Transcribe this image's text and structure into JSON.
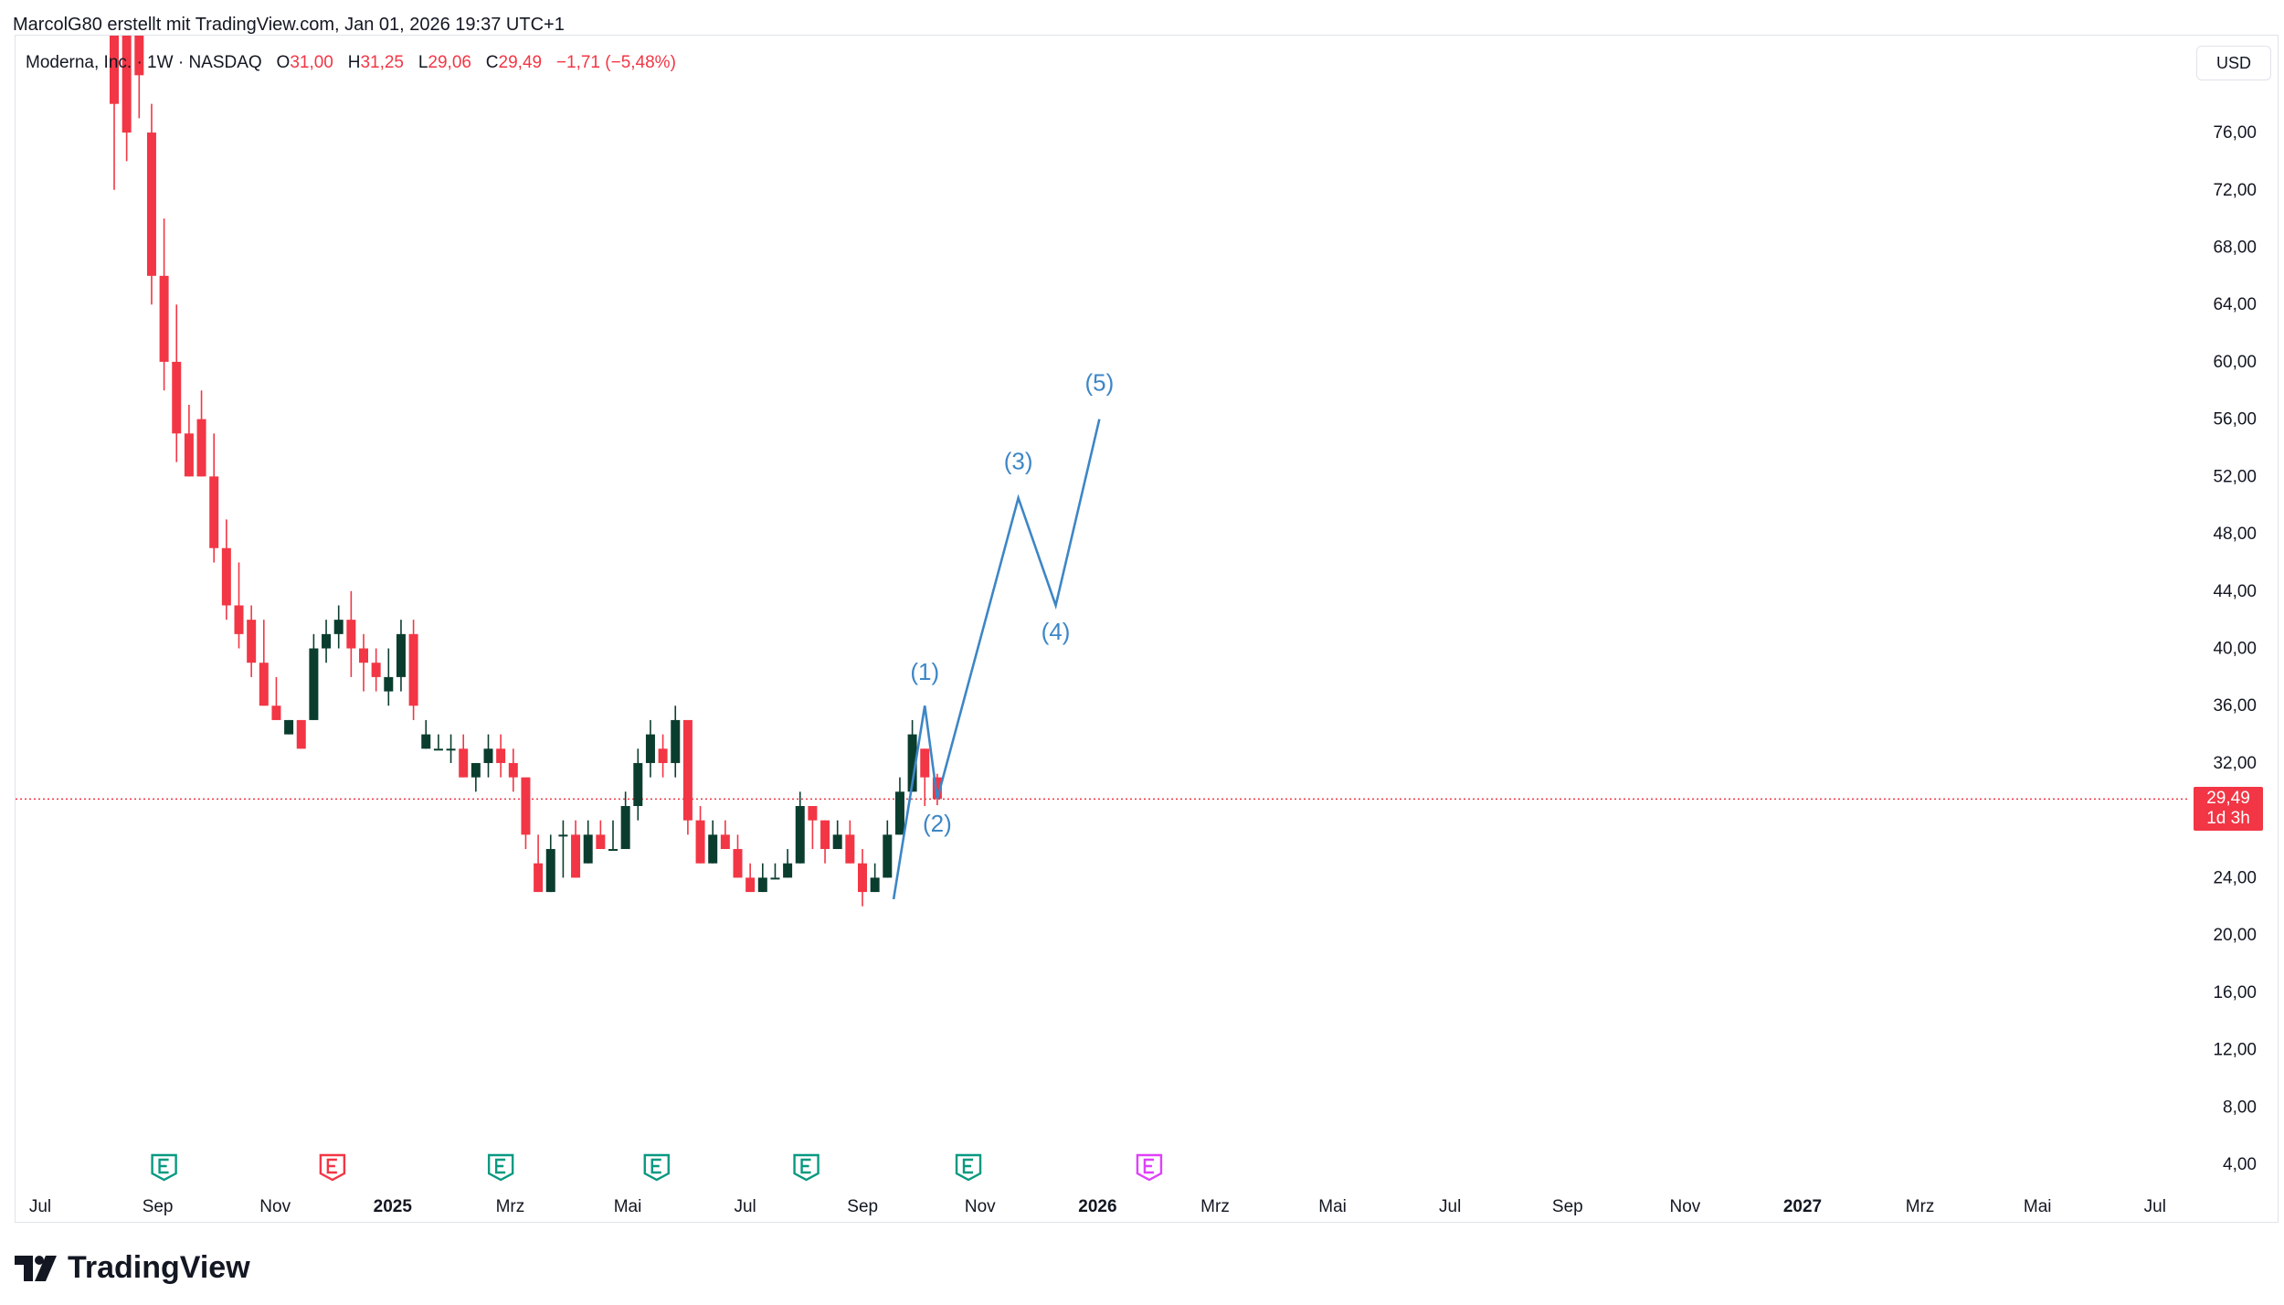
{
  "header": {
    "credit": "MarcolG80 erstellt mit TradingView.com, Jan 01, 2026 19:37 UTC+1"
  },
  "legend": {
    "symbol": "Moderna, Inc. · 1W · NASDAQ",
    "o_label": "O",
    "o_value": "31,00",
    "h_label": "H",
    "h_value": "31,25",
    "l_label": "L",
    "l_value": "29,06",
    "c_label": "C",
    "c_value": "29,49",
    "change": "−1,71 (−5,48%)"
  },
  "currency_button": "USD",
  "last_price": {
    "value": "29,49",
    "countdown": "1d 3h"
  },
  "colors": {
    "up": "#0b3d2e",
    "down": "#f23645",
    "wave": "#3d86c6",
    "earnings": "#089981",
    "earnings_future": "#e040fb"
  },
  "brand": "TradingView",
  "chart_data": {
    "type": "candlestick",
    "timeframe": "1W",
    "ylim": [
      4,
      80
    ],
    "y_ticks": [
      "76,00",
      "72,00",
      "68,00",
      "64,00",
      "60,00",
      "56,00",
      "52,00",
      "48,00",
      "44,00",
      "40,00",
      "36,00",
      "32,00",
      "28,00",
      "24,00",
      "20,00",
      "16,00",
      "12,00",
      "8,00",
      "4,00"
    ],
    "x_ticks": [
      {
        "label": "Jul",
        "bold": false
      },
      {
        "label": "Sep",
        "bold": false
      },
      {
        "label": "Nov",
        "bold": false
      },
      {
        "label": "2025",
        "bold": true
      },
      {
        "label": "Mrz",
        "bold": false
      },
      {
        "label": "Mai",
        "bold": false
      },
      {
        "label": "Jul",
        "bold": false
      },
      {
        "label": "Sep",
        "bold": false
      },
      {
        "label": "Nov",
        "bold": false
      },
      {
        "label": "2026",
        "bold": true
      },
      {
        "label": "Mrz",
        "bold": false
      },
      {
        "label": "Mai",
        "bold": false
      },
      {
        "label": "Jul",
        "bold": false
      },
      {
        "label": "Sep",
        "bold": false
      },
      {
        "label": "Nov",
        "bold": false
      },
      {
        "label": "2027",
        "bold": true
      },
      {
        "label": "Mrz",
        "bold": false
      },
      {
        "label": "Mai",
        "bold": false
      },
      {
        "label": "Jul",
        "bold": false
      }
    ],
    "last_close": 29.49,
    "candles": [
      [
        85,
        78,
        88,
        72
      ],
      [
        84,
        76,
        86,
        74
      ],
      [
        84,
        80,
        86,
        77
      ],
      [
        76,
        66,
        78,
        64
      ],
      [
        66,
        60,
        70,
        58
      ],
      [
        60,
        55,
        64,
        53
      ],
      [
        55,
        52,
        57,
        52
      ],
      [
        56,
        52,
        58,
        52
      ],
      [
        52,
        47,
        55,
        46
      ],
      [
        47,
        43,
        49,
        42
      ],
      [
        43,
        41,
        46,
        40
      ],
      [
        42,
        39,
        43,
        38
      ],
      [
        39,
        36,
        42,
        36
      ],
      [
        36,
        35,
        38,
        35
      ],
      [
        34,
        35,
        35,
        34
      ],
      [
        35,
        33,
        35,
        33
      ],
      [
        35,
        40,
        41,
        35
      ],
      [
        40,
        41,
        42,
        39
      ],
      [
        41,
        42,
        43,
        40
      ],
      [
        42,
        40,
        44,
        38
      ],
      [
        40,
        39,
        41,
        37
      ],
      [
        39,
        38,
        40,
        37
      ],
      [
        37,
        38,
        40,
        36
      ],
      [
        38,
        41,
        42,
        37
      ],
      [
        41,
        36,
        42,
        35
      ],
      [
        33,
        34,
        35,
        33
      ],
      [
        33,
        33,
        34,
        33
      ],
      [
        33,
        33,
        34,
        32
      ],
      [
        33,
        31,
        34,
        31
      ],
      [
        31,
        32,
        32,
        30
      ],
      [
        32,
        33,
        34,
        31
      ],
      [
        33,
        32,
        34,
        31
      ],
      [
        32,
        31,
        33,
        30
      ],
      [
        31,
        27,
        31,
        26
      ],
      [
        25,
        23,
        27,
        23
      ],
      [
        23,
        26,
        27,
        23
      ],
      [
        27,
        27,
        28,
        24
      ],
      [
        27,
        24,
        28,
        24
      ],
      [
        25,
        27,
        28,
        25
      ],
      [
        27,
        26,
        28,
        26
      ],
      [
        26,
        26,
        28,
        26
      ],
      [
        26,
        29,
        30,
        26
      ],
      [
        29,
        32,
        33,
        28
      ],
      [
        32,
        34,
        35,
        31
      ],
      [
        33,
        32,
        34,
        31
      ],
      [
        32,
        35,
        36,
        31
      ],
      [
        35,
        28,
        35,
        27
      ],
      [
        28,
        25,
        29,
        25
      ],
      [
        25,
        27,
        28,
        25
      ],
      [
        27,
        26,
        28,
        26
      ],
      [
        26,
        24,
        27,
        24
      ],
      [
        24,
        23,
        25,
        23
      ],
      [
        23,
        24,
        25,
        23
      ],
      [
        24,
        24,
        25,
        24
      ],
      [
        24,
        25,
        26,
        24
      ],
      [
        25,
        29,
        30,
        25
      ],
      [
        29,
        28,
        29,
        26
      ],
      [
        28,
        26,
        28,
        25
      ],
      [
        26,
        27,
        28,
        26
      ],
      [
        27,
        25,
        28,
        25
      ],
      [
        25,
        23,
        26,
        22
      ],
      [
        23,
        24,
        25,
        23
      ],
      [
        24,
        27,
        28,
        24
      ],
      [
        27,
        30,
        31,
        27
      ],
      [
        30,
        34,
        35,
        30
      ],
      [
        33,
        31,
        33,
        29
      ],
      [
        31,
        29.49,
        31.25,
        29.06
      ]
    ],
    "wave_labels": [
      "(1)",
      "(2)",
      "(3)",
      "(4)",
      "(5)"
    ],
    "wave_path": [
      {
        "week": 62.5,
        "price": 22.5
      },
      {
        "week": 65,
        "price": 36
      },
      {
        "week": 66,
        "price": 29.5
      },
      {
        "week": 72.5,
        "price": 50.5
      },
      {
        "week": 75.5,
        "price": 43
      },
      {
        "week": 79,
        "price": 56
      }
    ],
    "wave_label_points": [
      {
        "week": 65,
        "price": 37.8
      },
      {
        "week": 66,
        "price": 27.2
      },
      {
        "week": 72.5,
        "price": 52.5
      },
      {
        "week": 75.5,
        "price": 40.6
      },
      {
        "week": 79,
        "price": 58
      }
    ],
    "earnings_weeks": [
      {
        "week": 4,
        "future": false
      },
      {
        "week": 17.5,
        "future": false
      },
      {
        "week": 31,
        "future": false
      },
      {
        "week": 43.5,
        "future": false
      },
      {
        "week": 55.5,
        "future": false
      },
      {
        "week": 68.5,
        "future": false
      },
      {
        "week": 83,
        "future": true
      }
    ]
  }
}
